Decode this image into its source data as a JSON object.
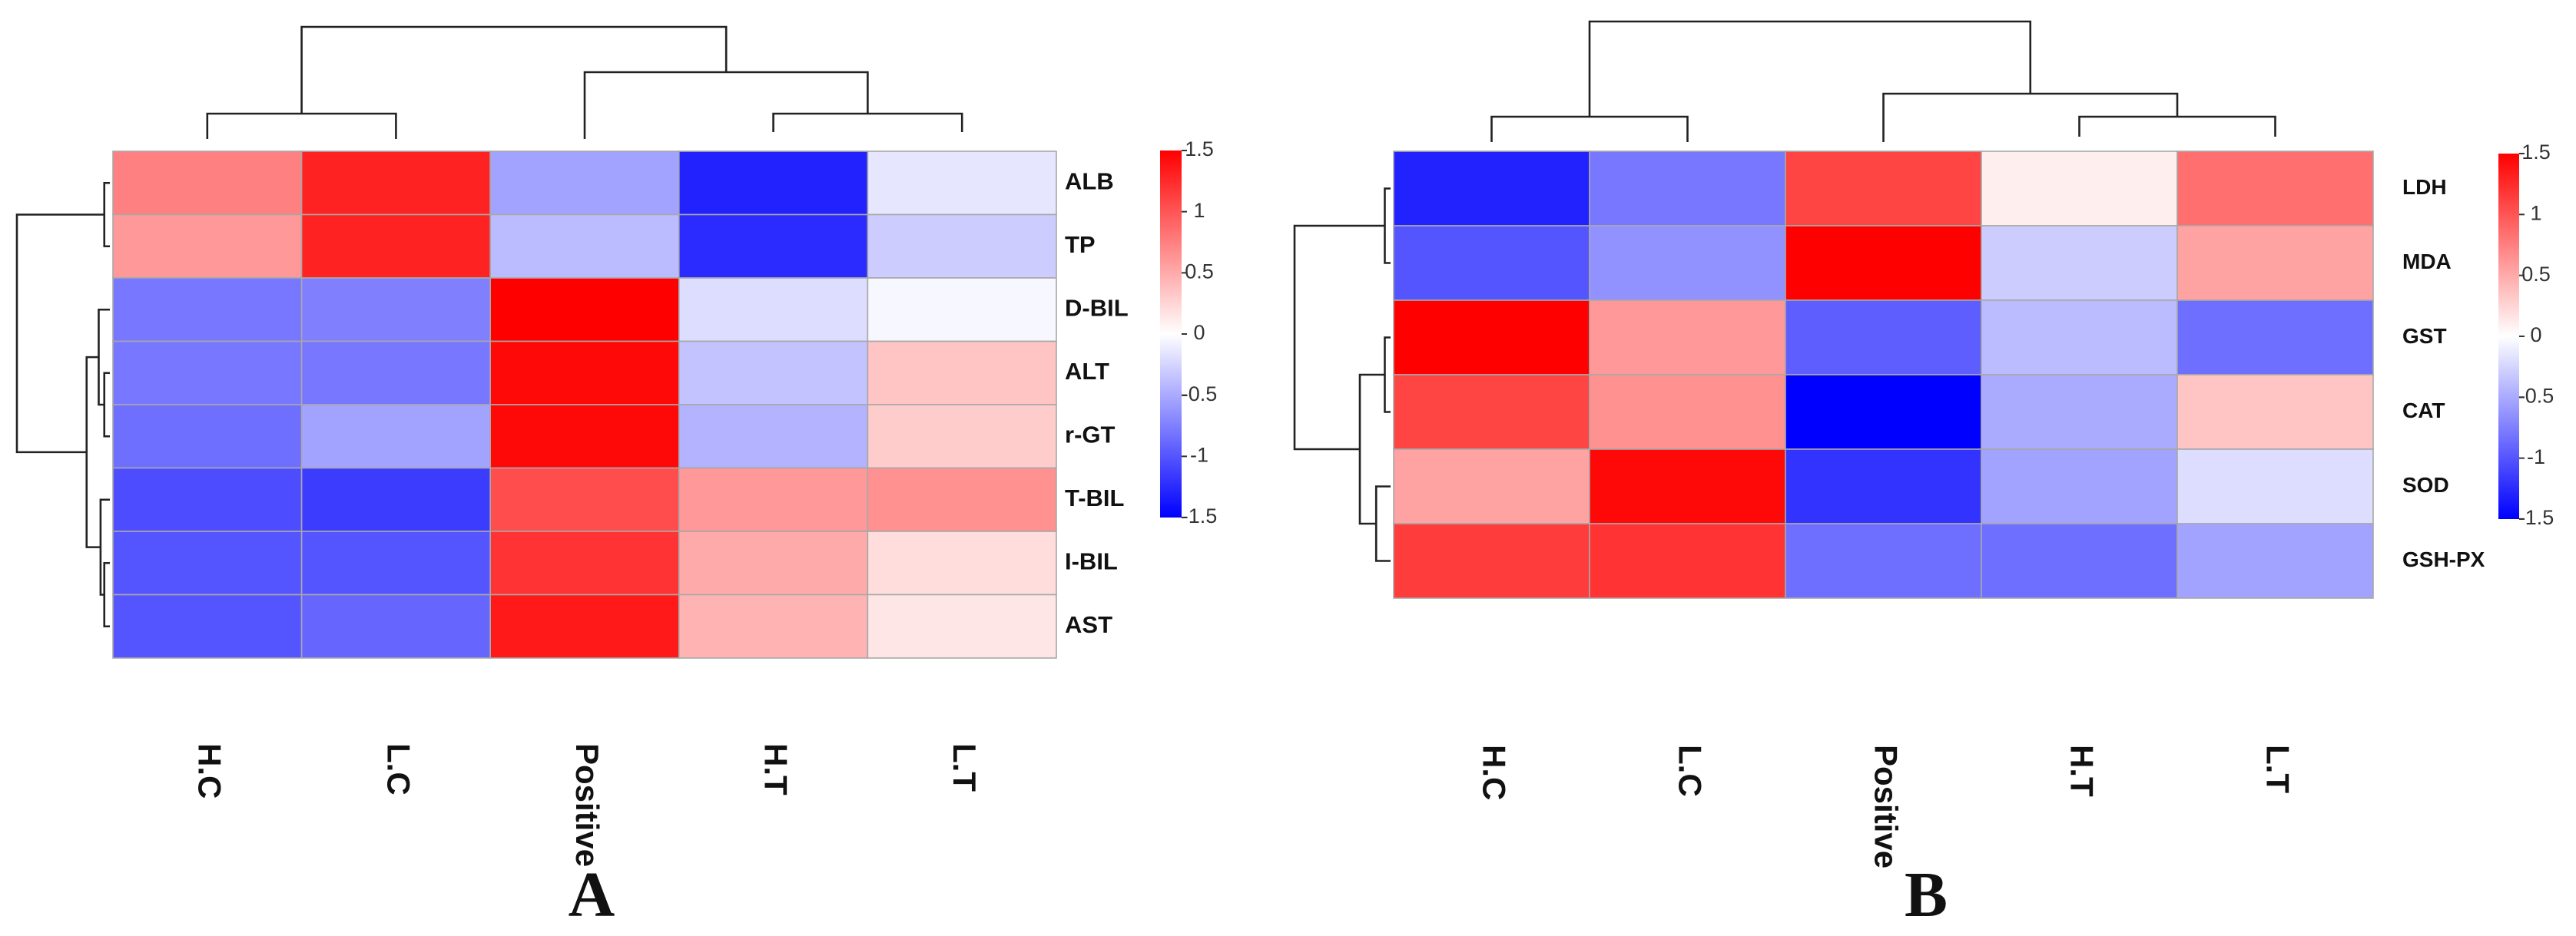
{
  "chart_data": [
    {
      "type": "heatmap",
      "panel_label": "A",
      "columns": [
        "H.C",
        "L.C",
        "Positive",
        "H.T",
        "L.T"
      ],
      "rows": [
        "ALB",
        "TP",
        "D-BIL",
        "ALT",
        "r-GT",
        "T-BIL",
        "I-BIL",
        "AST"
      ],
      "values": [
        [
          0.75,
          1.3,
          -0.55,
          -1.3,
          -0.15
        ],
        [
          0.6,
          1.3,
          -0.4,
          -1.25,
          -0.3
        ],
        [
          -0.8,
          -0.75,
          1.5,
          -0.2,
          -0.05
        ],
        [
          -0.8,
          -0.8,
          1.45,
          -0.35,
          0.35
        ],
        [
          -0.85,
          -0.55,
          1.45,
          -0.45,
          0.3
        ],
        [
          -1.05,
          -1.15,
          1.05,
          0.6,
          0.65
        ],
        [
          -1.0,
          -1.0,
          1.2,
          0.5,
          0.2
        ],
        [
          -1.0,
          -0.9,
          1.35,
          0.45,
          0.15
        ]
      ],
      "color_scale": {
        "min": -1.5,
        "max": 1.5,
        "low": "#0000ff",
        "mid": "#ffffff",
        "high": "#ff0000"
      },
      "legend_ticks": [
        "1.5",
        "1",
        "0.5",
        "0",
        "-0.5",
        "-1",
        "-1.5"
      ],
      "legend_tick_values": [
        1.5,
        1,
        0.5,
        0,
        -0.5,
        -1,
        -1.5
      ],
      "column_dendrogram": "((H.C,L.C),(Positive,(H.T,L.T)))",
      "row_dendrogram": "((ALB,TP),((D-BIL,ALT,r-GT),(T-BIL,I-BIL,AST)))"
    },
    {
      "type": "heatmap",
      "panel_label": "B",
      "columns": [
        "H.C",
        "L.C",
        "Positive",
        "H.T",
        "L.T"
      ],
      "rows": [
        "LDH",
        "MDA",
        "GST",
        "CAT",
        "SOD",
        "GSH-PX"
      ],
      "values": [
        [
          -1.3,
          -0.8,
          1.1,
          0.1,
          0.85
        ],
        [
          -1.0,
          -0.65,
          1.5,
          -0.3,
          0.55
        ],
        [
          1.5,
          0.6,
          -0.95,
          -0.4,
          -0.85
        ],
        [
          1.1,
          0.65,
          -1.5,
          -0.5,
          0.35
        ],
        [
          0.55,
          1.45,
          -1.2,
          -0.55,
          -0.2
        ],
        [
          1.15,
          1.2,
          -0.85,
          -0.85,
          -0.55
        ]
      ],
      "color_scale": {
        "min": -1.5,
        "max": 1.5,
        "low": "#0000ff",
        "mid": "#ffffff",
        "high": "#ff0000"
      },
      "legend_ticks": [
        "1.5",
        "1",
        "0.5",
        "0",
        "-0.5",
        "-1",
        "-1.5"
      ],
      "legend_tick_values": [
        1.5,
        1,
        0.5,
        0,
        -0.5,
        -1,
        -1.5
      ],
      "column_dendrogram": "((H.C,L.C),(Positive,(H.T,L.T)))",
      "row_dendrogram": "((LDH,MDA),((GST,CAT),(SOD,GSH-PX)))"
    }
  ]
}
